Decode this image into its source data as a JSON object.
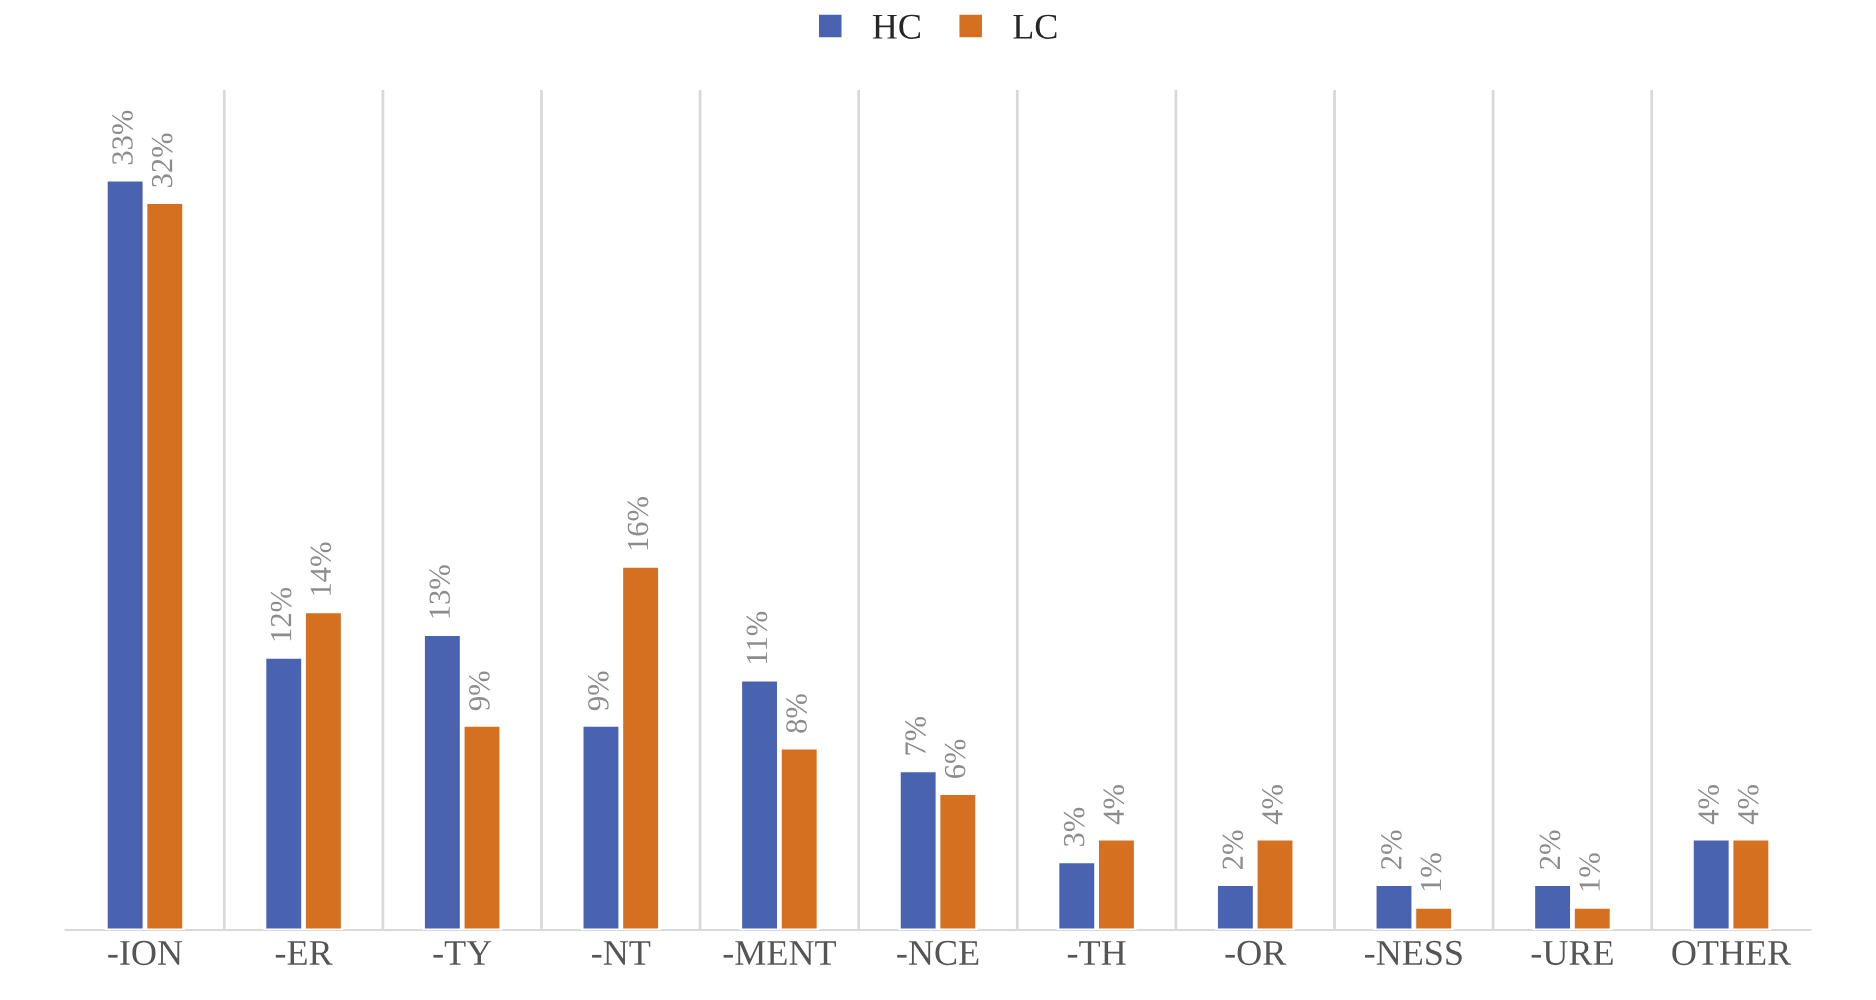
{
  "chart_data": {
    "type": "bar",
    "categories": [
      "-ION",
      "-ER",
      "-TY",
      "-NT",
      "-MENT",
      "-NCE",
      "-TH",
      "-OR",
      "-NESS",
      "-URE",
      "OTHER"
    ],
    "series": [
      {
        "name": "HC",
        "color": "#4a63b0",
        "values": [
          33,
          12,
          13,
          9,
          11,
          7,
          3,
          2,
          2,
          2,
          4
        ],
        "value_labels": [
          "33%",
          "12%",
          "13%",
          "9%",
          "11%",
          "7%",
          "3%",
          "2%",
          "2%",
          "2%",
          "4%"
        ]
      },
      {
        "name": "LC",
        "color": "#d4701f",
        "values": [
          32,
          14,
          9,
          16,
          8,
          6,
          4,
          4,
          1,
          1,
          4
        ],
        "value_labels": [
          "32%",
          "14%",
          "9%",
          "16%",
          "8%",
          "6%",
          "4%",
          "4%",
          "1%",
          "1%",
          "4%"
        ]
      }
    ],
    "legend": "top",
    "grid": "x",
    "tick_labels": "x"
  }
}
